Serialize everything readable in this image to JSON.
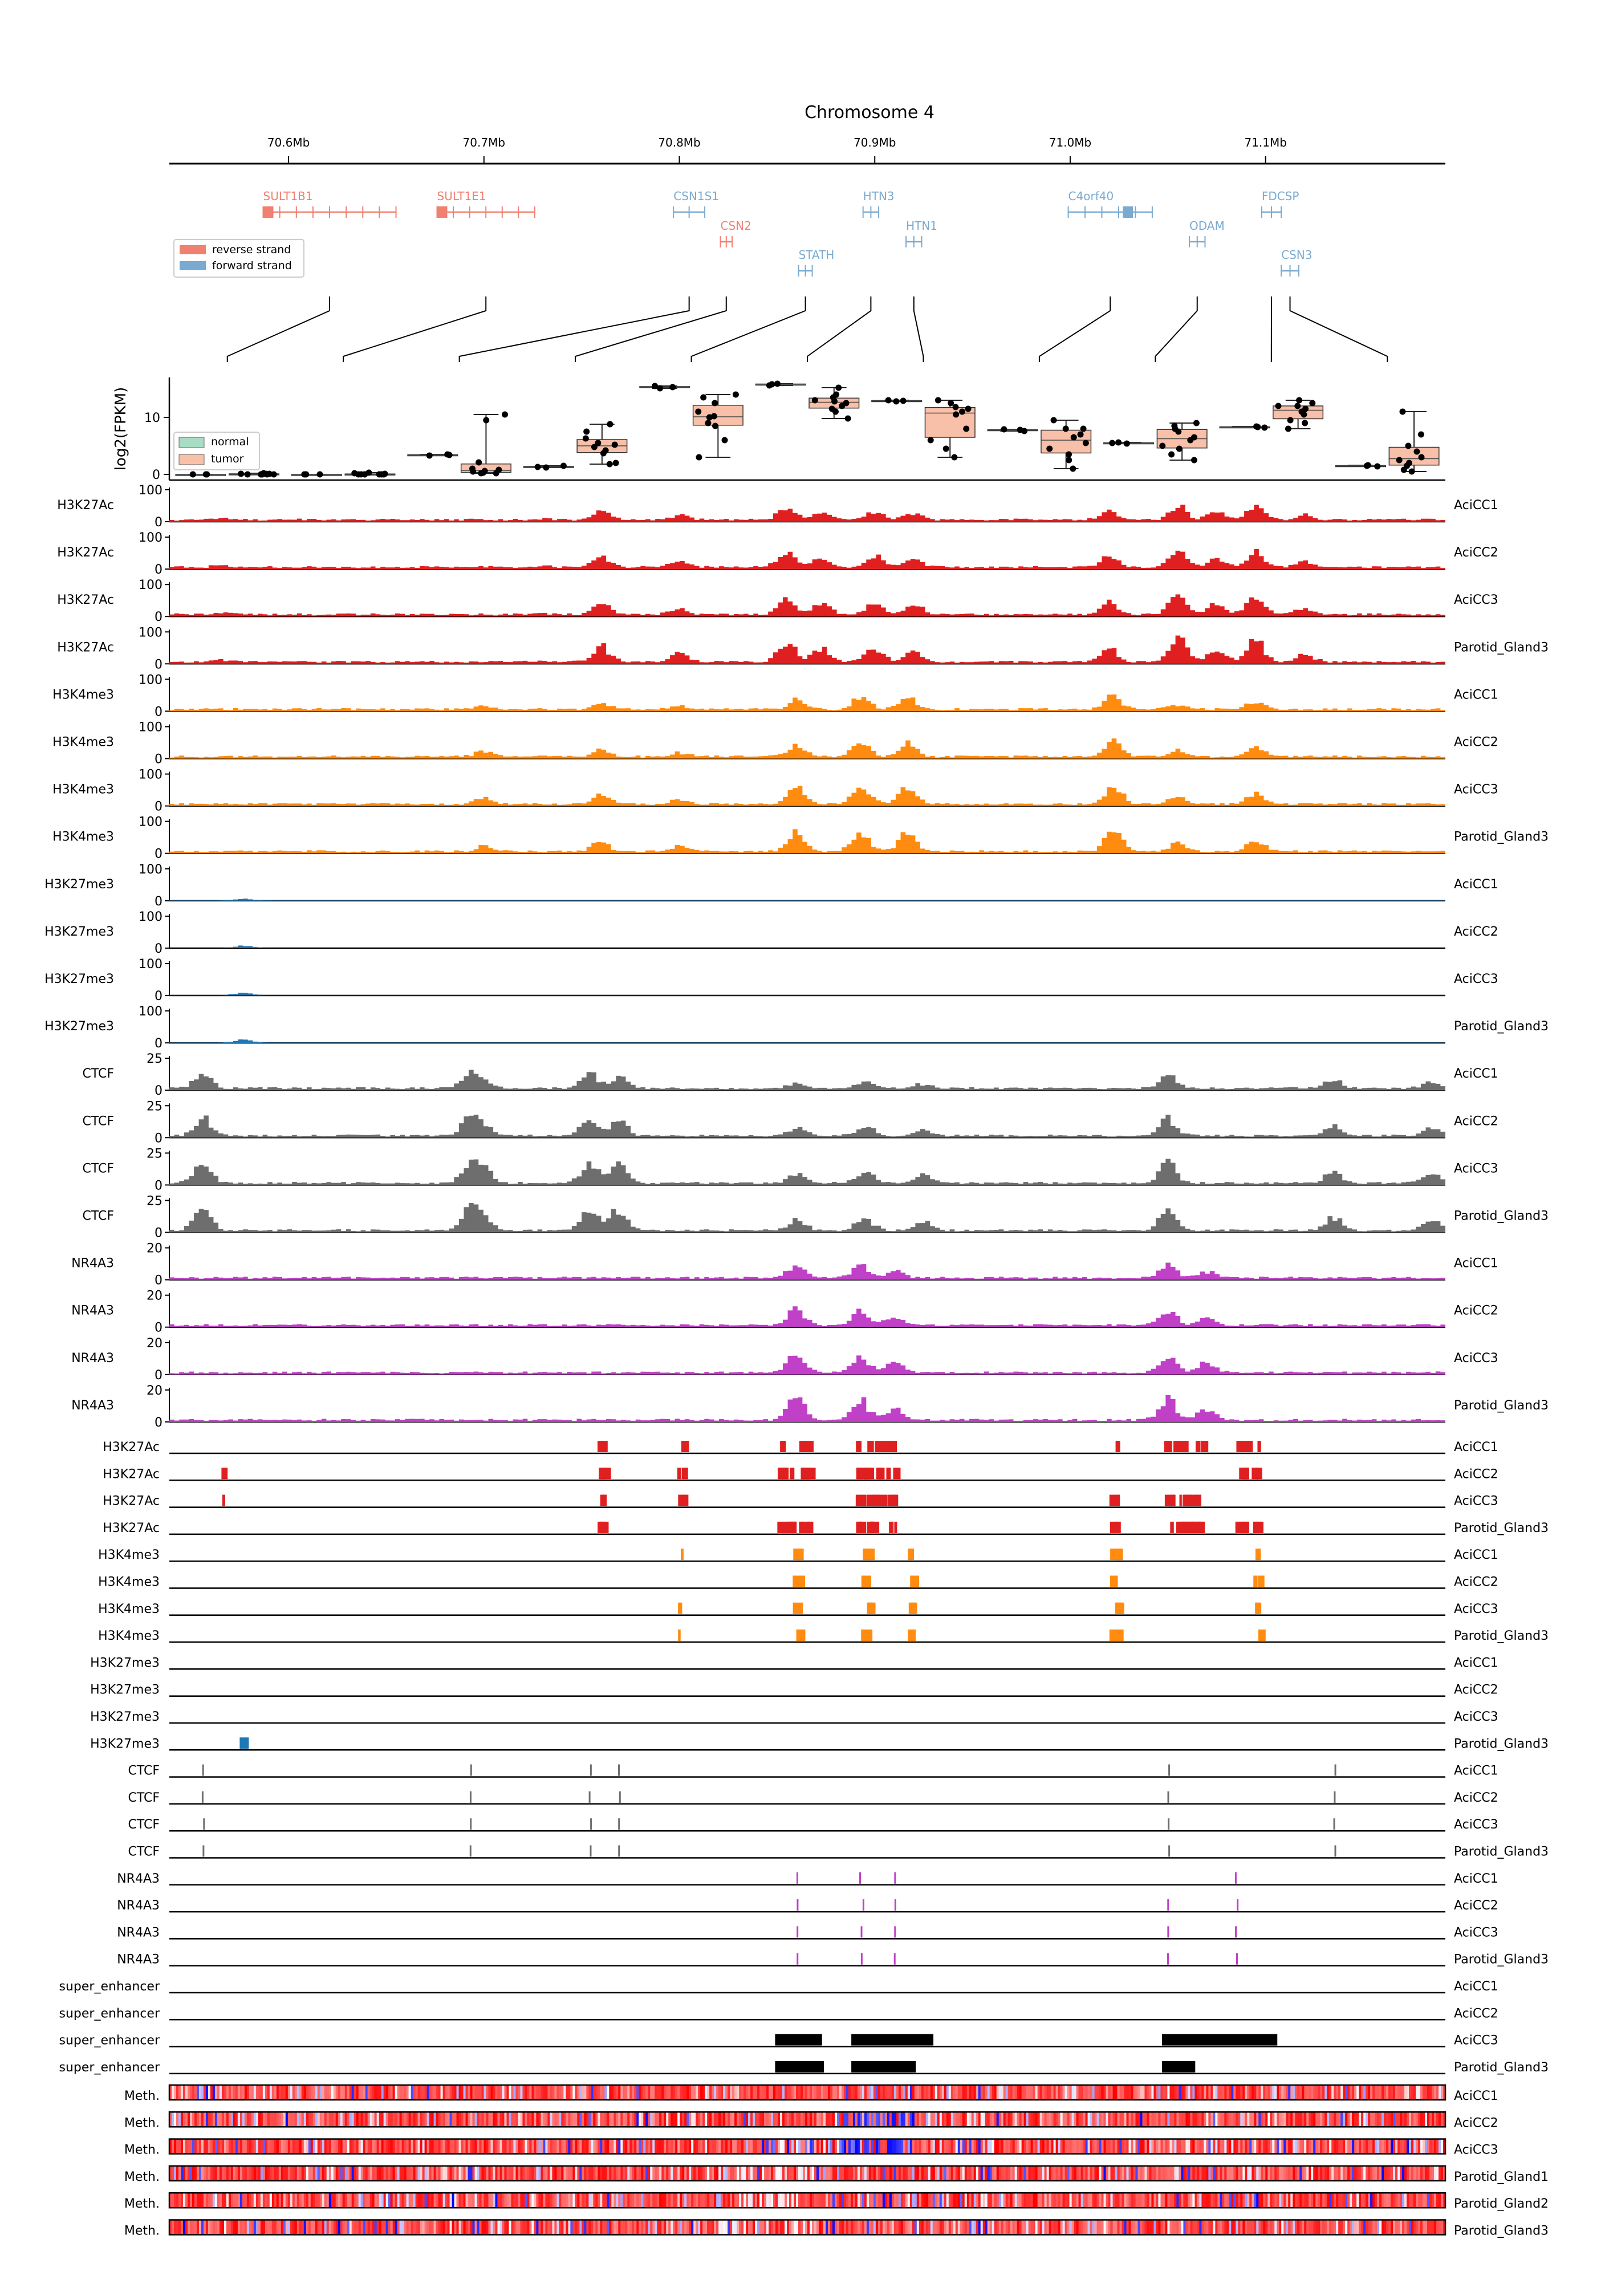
{
  "title": "Chromosome 4",
  "genome_axis": {
    "tick_labels": [
      "70.6Mb",
      "70.7Mb",
      "70.8Mb",
      "70.9Mb",
      "71.0Mb",
      "71.1Mb"
    ],
    "tick_positions_mb": [
      70.6,
      70.7,
      70.8,
      70.9,
      71.0,
      71.1
    ],
    "range_mb": [
      70.539,
      71.192
    ]
  },
  "strand_legend": [
    {
      "label": "reverse strand",
      "color": "#f08070"
    },
    {
      "label": "forward strand",
      "color": "#7aaad0"
    }
  ],
  "genes": [
    {
      "name": "SULT1B1",
      "strand": "reverse",
      "start": 70.587,
      "end": 70.655,
      "row": 0
    },
    {
      "name": "SULT1E1",
      "strand": "reverse",
      "start": 70.676,
      "end": 70.726,
      "row": 0
    },
    {
      "name": "CSN1S1",
      "strand": "forward",
      "start": 70.797,
      "end": 70.813,
      "row": 0
    },
    {
      "name": "CSN2",
      "strand": "reverse",
      "start": 70.821,
      "end": 70.827,
      "row": 1
    },
    {
      "name": "STATH",
      "strand": "forward",
      "start": 70.861,
      "end": 70.868,
      "row": 2
    },
    {
      "name": "HTN3",
      "strand": "forward",
      "start": 70.894,
      "end": 70.902,
      "row": 0
    },
    {
      "name": "HTN1",
      "strand": "forward",
      "start": 70.916,
      "end": 70.924,
      "row": 1
    },
    {
      "name": "C4orf40",
      "strand": "forward",
      "start": 70.999,
      "end": 71.042,
      "row": 0
    },
    {
      "name": "ODAM",
      "strand": "forward",
      "start": 71.061,
      "end": 71.069,
      "row": 1
    },
    {
      "name": "FDCSP",
      "strand": "forward",
      "start": 71.098,
      "end": 71.108,
      "row": 0
    },
    {
      "name": "CSN3",
      "strand": "forward",
      "start": 71.108,
      "end": 71.117,
      "row": 2
    }
  ],
  "chart_data": [
    {
      "type": "box",
      "ylabel": "log2(FPKM)",
      "ytick_labels": [
        "0",
        "10"
      ],
      "ylim": [
        -1,
        17
      ],
      "legend": [
        {
          "label": "normal",
          "color": "#a8dcc4"
        },
        {
          "label": "tumor",
          "color": "#f8c0a8"
        }
      ],
      "gene_order": [
        "SULT1B1",
        "SULT1E1",
        "CSN1S1",
        "CSN2",
        "STATH",
        "HTN3",
        "HTN1",
        "C4orf40",
        "ODAM",
        "FDCSP",
        "CSN3"
      ],
      "groups": [
        {
          "normal": [
            0,
            0,
            0
          ],
          "tumor": [
            0,
            0,
            0,
            0.1,
            0.1,
            0,
            0,
            0.2,
            0,
            0.1
          ]
        },
        {
          "normal": [
            0,
            0,
            0
          ],
          "tumor": [
            0,
            0,
            0.1,
            0,
            0.2,
            0.3,
            0,
            0,
            0,
            0
          ]
        },
        {
          "normal": [
            3.4,
            3.5,
            3.3
          ],
          "tumor": [
            0.3,
            0.8,
            0.5,
            1.0,
            2.1,
            0.2,
            9.5,
            10.5,
            0.6,
            0.2
          ]
        },
        {
          "normal": [
            1.3,
            1.2,
            1.5
          ],
          "tumor": [
            5.2,
            4.8,
            3.7,
            2.0,
            8.8,
            7.5,
            4.2,
            6.3,
            1.8,
            5.5
          ]
        },
        {
          "normal": [
            15.3,
            15.5,
            15.1
          ],
          "tumor": [
            10.2,
            12.5,
            14.0,
            8.5,
            3.0,
            9.0,
            13.5,
            6.0,
            11.0,
            10.0
          ]
        },
        {
          "normal": [
            15.8,
            15.9,
            15.6
          ],
          "tumor": [
            12.5,
            13.5,
            11.0,
            9.8,
            15.2,
            12.0,
            13.0,
            14.0,
            11.5,
            12.8
          ]
        },
        {
          "normal": [
            12.9,
            13.0,
            12.8
          ],
          "tumor": [
            11.5,
            13.0,
            12.5,
            8.0,
            3.0,
            6.0,
            11.8,
            10.5,
            4.5,
            11.0
          ]
        },
        {
          "normal": [
            7.8,
            7.9,
            7.6
          ],
          "tumor": [
            5.5,
            8.0,
            9.5,
            3.5,
            1.0,
            7.0,
            2.5,
            6.5,
            4.5,
            8.0
          ]
        },
        {
          "normal": [
            5.5,
            5.6,
            5.4
          ],
          "tumor": [
            6.5,
            8.5,
            9.0,
            3.5,
            2.5,
            7.5,
            4.5,
            5.0,
            8.0,
            6.0
          ]
        },
        {
          "normal": [
            8.3,
            8.4,
            8.2
          ],
          "tumor": [
            11.0,
            12.5,
            9.5,
            12.0,
            8.0,
            13.0,
            10.5,
            11.5,
            9.0,
            12.0
          ]
        },
        {
          "normal": [
            1.5,
            1.4,
            1.6
          ],
          "tumor": [
            2.5,
            4.0,
            11.0,
            7.0,
            0.5,
            1.5,
            3.0,
            5.0,
            2.0,
            0.8
          ]
        }
      ]
    },
    {
      "type": "area",
      "description_tracks": "signal tracks",
      "bins": 260,
      "tracks": [
        {
          "label": "H3K27Ac",
          "sample": "AciCC1",
          "ymax": 100,
          "ticks": [
            "100",
            "0"
          ],
          "color": "#e02020"
        },
        {
          "label": "H3K27Ac",
          "sample": "AciCC2",
          "ymax": 100,
          "ticks": [
            "100",
            "0"
          ],
          "color": "#e02020"
        },
        {
          "label": "H3K27Ac",
          "sample": "AciCC3",
          "ymax": 100,
          "ticks": [
            "100",
            "0"
          ],
          "color": "#e02020"
        },
        {
          "label": "H3K27Ac",
          "sample": "Parotid_Gland3",
          "ymax": 100,
          "ticks": [
            "100",
            "0"
          ],
          "color": "#e02020"
        },
        {
          "label": "H3K4me3",
          "sample": "AciCC1",
          "ymax": 100,
          "ticks": [
            "100",
            "0"
          ],
          "color": "#ff8c10"
        },
        {
          "label": "H3K4me3",
          "sample": "AciCC2",
          "ymax": 100,
          "ticks": [
            "100",
            "0"
          ],
          "color": "#ff8c10"
        },
        {
          "label": "H3K4me3",
          "sample": "AciCC3",
          "ymax": 100,
          "ticks": [
            "100",
            "0"
          ],
          "color": "#ff8c10"
        },
        {
          "label": "H3K4me3",
          "sample": "Parotid_Gland3",
          "ymax": 100,
          "ticks": [
            "100",
            "0"
          ],
          "color": "#ff8c10"
        },
        {
          "label": "H3K27me3",
          "sample": "AciCC1",
          "ymax": 100,
          "ticks": [
            "100",
            "0"
          ],
          "color": "#1f77b4"
        },
        {
          "label": "H3K27me3",
          "sample": "AciCC2",
          "ymax": 100,
          "ticks": [
            "100",
            "0"
          ],
          "color": "#1f77b4"
        },
        {
          "label": "H3K27me3",
          "sample": "AciCC3",
          "ymax": 100,
          "ticks": [
            "100",
            "0"
          ],
          "color": "#1f77b4"
        },
        {
          "label": "H3K27me3",
          "sample": "Parotid_Gland3",
          "ymax": 100,
          "ticks": [
            "100",
            "0"
          ],
          "color": "#1f77b4"
        },
        {
          "label": "CTCF",
          "sample": "AciCC1",
          "ymax": 30,
          "ticks": [
            "25",
            "0"
          ],
          "color": "#6e6e6e"
        },
        {
          "label": "CTCF",
          "sample": "AciCC2",
          "ymax": 30,
          "ticks": [
            "25",
            "0"
          ],
          "color": "#6e6e6e"
        },
        {
          "label": "CTCF",
          "sample": "AciCC3",
          "ymax": 30,
          "ticks": [
            "25",
            "0"
          ],
          "color": "#6e6e6e"
        },
        {
          "label": "CTCF",
          "sample": "Parotid_Gland3",
          "ymax": 30,
          "ticks": [
            "25",
            "0"
          ],
          "color": "#6e6e6e"
        },
        {
          "label": "NR4A3",
          "sample": "AciCC1",
          "ymax": 22,
          "ticks": [
            "20",
            "0"
          ],
          "color": "#c040c8"
        },
        {
          "label": "NR4A3",
          "sample": "AciCC2",
          "ymax": 22,
          "ticks": [
            "20",
            "0"
          ],
          "color": "#c040c8"
        },
        {
          "label": "NR4A3",
          "sample": "AciCC3",
          "ymax": 22,
          "ticks": [
            "20",
            "0"
          ],
          "color": "#c040c8"
        },
        {
          "label": "NR4A3",
          "sample": "Parotid_Gland3",
          "ymax": 22,
          "ticks": [
            "20",
            "0"
          ],
          "color": "#c040c8"
        }
      ]
    },
    {
      "type": "interval",
      "tracks": [
        {
          "label": "H3K27Ac",
          "sample": "AciCC1",
          "color": "#e02020"
        },
        {
          "label": "H3K27Ac",
          "sample": "AciCC2",
          "color": "#e02020"
        },
        {
          "label": "H3K27Ac",
          "sample": "AciCC3",
          "color": "#e02020"
        },
        {
          "label": "H3K27Ac",
          "sample": "Parotid_Gland3",
          "color": "#e02020"
        },
        {
          "label": "H3K4me3",
          "sample": "AciCC1",
          "color": "#ff8c10"
        },
        {
          "label": "H3K4me3",
          "sample": "AciCC2",
          "color": "#ff8c10"
        },
        {
          "label": "H3K4me3",
          "sample": "AciCC3",
          "color": "#ff8c10"
        },
        {
          "label": "H3K4me3",
          "sample": "Parotid_Gland3",
          "color": "#ff8c10"
        },
        {
          "label": "H3K27me3",
          "sample": "AciCC1",
          "color": "#1f77b4"
        },
        {
          "label": "H3K27me3",
          "sample": "AciCC2",
          "color": "#1f77b4"
        },
        {
          "label": "H3K27me3",
          "sample": "AciCC3",
          "color": "#1f77b4"
        },
        {
          "label": "H3K27me3",
          "sample": "Parotid_Gland3",
          "color": "#1f77b4"
        },
        {
          "label": "CTCF",
          "sample": "AciCC1",
          "color": "#6e6e6e"
        },
        {
          "label": "CTCF",
          "sample": "AciCC2",
          "color": "#6e6e6e"
        },
        {
          "label": "CTCF",
          "sample": "AciCC3",
          "color": "#6e6e6e"
        },
        {
          "label": "CTCF",
          "sample": "Parotid_Gland3",
          "color": "#6e6e6e"
        },
        {
          "label": "NR4A3",
          "sample": "AciCC1",
          "color": "#c040c8"
        },
        {
          "label": "NR4A3",
          "sample": "AciCC2",
          "color": "#c040c8"
        },
        {
          "label": "NR4A3",
          "sample": "AciCC3",
          "color": "#c040c8"
        },
        {
          "label": "NR4A3",
          "sample": "Parotid_Gland3",
          "color": "#c040c8"
        },
        {
          "label": "super_enhancer",
          "sample": "AciCC1",
          "color": "#000000"
        },
        {
          "label": "super_enhancer",
          "sample": "AciCC2",
          "color": "#000000"
        },
        {
          "label": "super_enhancer",
          "sample": "AciCC3",
          "color": "#000000"
        },
        {
          "label": "super_enhancer",
          "sample": "Parotid_Gland3",
          "color": "#000000"
        }
      ]
    },
    {
      "type": "heatmap",
      "colormap": "bwr",
      "tracks": [
        {
          "label": "Meth.",
          "sample": "AciCC1"
        },
        {
          "label": "Meth.",
          "sample": "AciCC2"
        },
        {
          "label": "Meth.",
          "sample": "AciCC3"
        },
        {
          "label": "Meth.",
          "sample": "Parotid_Gland1"
        },
        {
          "label": "Meth.",
          "sample": "Parotid_Gland2"
        },
        {
          "label": "Meth.",
          "sample": "Parotid_Gland3"
        }
      ]
    }
  ]
}
